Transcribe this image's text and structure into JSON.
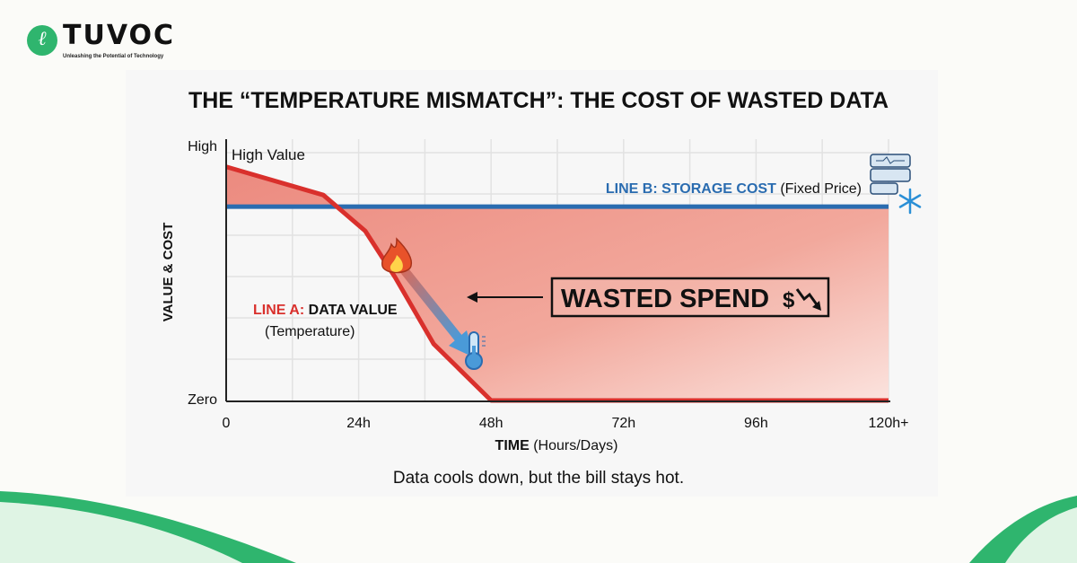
{
  "logo": {
    "name": "TUVOC",
    "tagline": "Unleashing the Potential of Technology",
    "mark": "ℓ"
  },
  "caption": "Data cools down, but the bill stays hot.",
  "colors": {
    "line_a": "#d9302c",
    "line_b": "#2a6cb0",
    "fill": "#ec8a7f",
    "logo_green": "#2fb56e"
  },
  "chart_data": {
    "type": "line",
    "title": "THE “TEMPERATURE MISMATCH”: THE COST OF WASTED DATA",
    "xlabel_bold": "TIME",
    "xlabel_rest": "(Hours/Days)",
    "ylabel": "VALUE & COST",
    "x_ticks": [
      {
        "v": 0,
        "label": "0"
      },
      {
        "v": 24,
        "label": "24h"
      },
      {
        "v": 48,
        "label": "48h"
      },
      {
        "v": 72,
        "label": "72h"
      },
      {
        "v": 96,
        "label": "96h"
      },
      {
        "v": 120,
        "label": "120h+"
      }
    ],
    "y_ticks": [
      {
        "v": 100,
        "label": "High"
      },
      {
        "v": 0,
        "label": "Zero"
      }
    ],
    "xlim": [
      0,
      120
    ],
    "ylim": [
      0,
      100
    ],
    "grid": true,
    "series": [
      {
        "name_prefix": "LINE A:",
        "name": "DATA VALUE",
        "sub": "(Temperature)",
        "color": "#d9302c",
        "x": [
          0,
          17.6,
          25.2,
          30.6,
          37.6,
          48,
          120
        ],
        "y": [
          91,
          80,
          66,
          48,
          22,
          0,
          0
        ]
      },
      {
        "name_prefix": "LINE B:",
        "name": "STORAGE COST",
        "sub": "(Fixed Price)",
        "color": "#2a6cb0",
        "x": [
          0,
          120
        ],
        "y": [
          75.5,
          75.5
        ]
      }
    ],
    "annotations": {
      "high_value": "High Value",
      "wasted_spend": "WASTED SPEND",
      "dollar": "$"
    },
    "icons": [
      "fire-icon",
      "thermometer-icon",
      "server-icon",
      "snowflake-icon",
      "trend-down-icon"
    ]
  }
}
